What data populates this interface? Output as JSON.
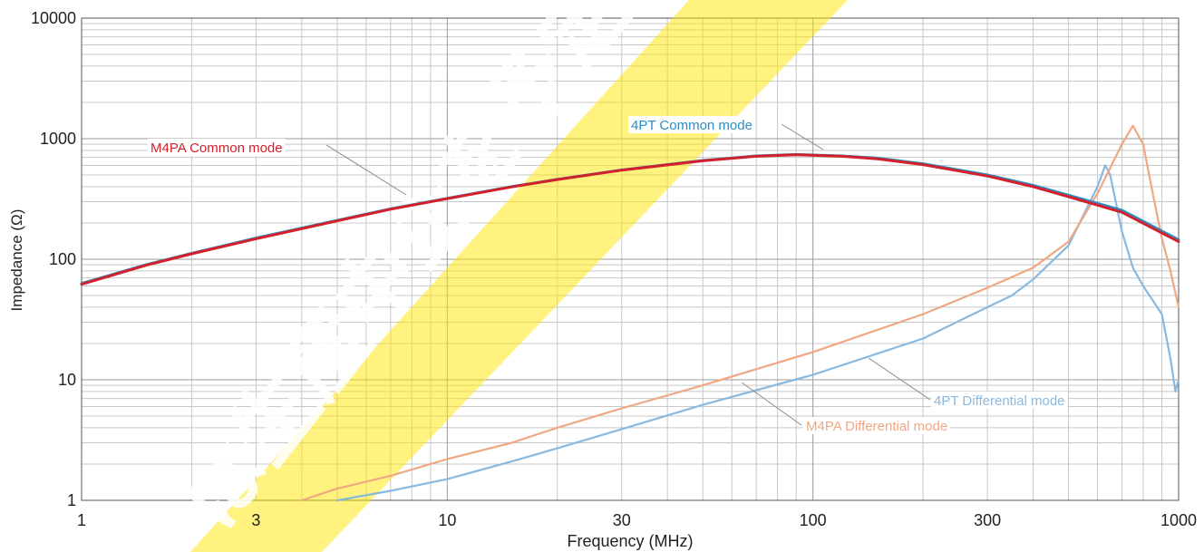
{
  "chart_data": {
    "type": "line",
    "xlabel": "Frequency (MHz)",
    "ylabel": "Impedance (Ω)",
    "x_scale": "log",
    "y_scale": "log",
    "xlim": [
      1,
      1000
    ],
    "ylim": [
      1,
      10000
    ],
    "grid": true,
    "x_ticks": [
      {
        "value": 1,
        "label": "1"
      },
      {
        "value": 3,
        "label": "3"
      },
      {
        "value": 10,
        "label": "10"
      },
      {
        "value": 30,
        "label": "30"
      },
      {
        "value": 100,
        "label": "100"
      },
      {
        "value": 300,
        "label": "300"
      },
      {
        "value": 1000,
        "label": "1000"
      }
    ],
    "y_ticks": [
      {
        "value": 1,
        "label": "1"
      },
      {
        "value": 10,
        "label": "10"
      },
      {
        "value": 100,
        "label": "100"
      },
      {
        "value": 1000,
        "label": "1000"
      },
      {
        "value": 10000,
        "label": "10000"
      }
    ],
    "watermark": "は生産中止を予定",
    "series": [
      {
        "name": "4PT Common mode",
        "color": "#2a8fc4",
        "label_color": "#2a8fc4",
        "points": [
          [
            1,
            63
          ],
          [
            1.5,
            90
          ],
          [
            2,
            112
          ],
          [
            3,
            150
          ],
          [
            5,
            210
          ],
          [
            7,
            262
          ],
          [
            10,
            320
          ],
          [
            15,
            400
          ],
          [
            20,
            460
          ],
          [
            30,
            550
          ],
          [
            50,
            660
          ],
          [
            70,
            720
          ],
          [
            90,
            740
          ],
          [
            120,
            720
          ],
          [
            150,
            690
          ],
          [
            200,
            620
          ],
          [
            300,
            500
          ],
          [
            400,
            410
          ],
          [
            500,
            340
          ],
          [
            700,
            255
          ],
          [
            1000,
            145
          ]
        ]
      },
      {
        "name": "M4PA Common mode",
        "color": "#d4202a",
        "label_color": "#d4202a",
        "points": [
          [
            1,
            62
          ],
          [
            1.5,
            89
          ],
          [
            2,
            111
          ],
          [
            3,
            148
          ],
          [
            5,
            208
          ],
          [
            7,
            260
          ],
          [
            10,
            318
          ],
          [
            15,
            398
          ],
          [
            20,
            458
          ],
          [
            30,
            548
          ],
          [
            50,
            655
          ],
          [
            70,
            715
          ],
          [
            90,
            735
          ],
          [
            120,
            715
          ],
          [
            150,
            680
          ],
          [
            200,
            610
          ],
          [
            300,
            490
          ],
          [
            400,
            400
          ],
          [
            500,
            330
          ],
          [
            700,
            245
          ],
          [
            1000,
            140
          ]
        ]
      },
      {
        "name": "4PT Differential mode",
        "color": "#88b9e0",
        "label_color": "#88b9e0",
        "points": [
          [
            5,
            1.0
          ],
          [
            7,
            1.2
          ],
          [
            10,
            1.5
          ],
          [
            15,
            2.1
          ],
          [
            20,
            2.7
          ],
          [
            30,
            3.9
          ],
          [
            50,
            6.2
          ],
          [
            100,
            11
          ],
          [
            200,
            22
          ],
          [
            300,
            40
          ],
          [
            350,
            50
          ],
          [
            400,
            68
          ],
          [
            500,
            130
          ],
          [
            600,
            400
          ],
          [
            630,
            600
          ],
          [
            650,
            500
          ],
          [
            700,
            170
          ],
          [
            750,
            85
          ],
          [
            800,
            60
          ],
          [
            900,
            35
          ],
          [
            950,
            15
          ],
          [
            980,
            8
          ],
          [
            1000,
            10
          ]
        ]
      },
      {
        "name": "M4PA Differential mode",
        "color": "#f0a882",
        "label_color": "#f0a882",
        "points": [
          [
            4,
            1.0
          ],
          [
            5,
            1.25
          ],
          [
            7,
            1.6
          ],
          [
            10,
            2.2
          ],
          [
            15,
            3.0
          ],
          [
            20,
            4.0
          ],
          [
            30,
            5.8
          ],
          [
            50,
            9.0
          ],
          [
            100,
            17
          ],
          [
            200,
            35
          ],
          [
            300,
            58
          ],
          [
            400,
            85
          ],
          [
            500,
            140
          ],
          [
            600,
            350
          ],
          [
            700,
            900
          ],
          [
            750,
            1280
          ],
          [
            800,
            900
          ],
          [
            850,
            350
          ],
          [
            900,
            150
          ],
          [
            950,
            80
          ],
          [
            1000,
            40
          ]
        ]
      }
    ]
  }
}
